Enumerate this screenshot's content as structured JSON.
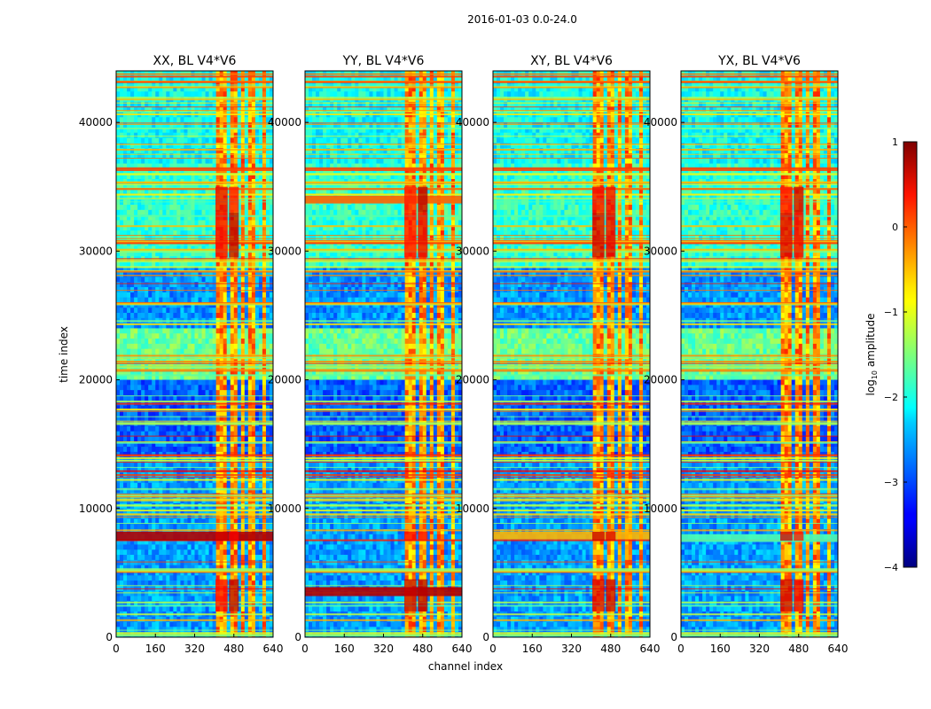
{
  "figure": {
    "suptitle": "2016-01-03 0.0-24.0"
  },
  "chart_data": {
    "type": "heatmap",
    "xlabel": "channel index",
    "ylabel": "time index",
    "xlim": [
      0,
      640
    ],
    "ylim": [
      0,
      44000
    ],
    "xticks": [
      0,
      160,
      320,
      480,
      640
    ],
    "yticks": [
      0,
      10000,
      20000,
      30000,
      40000
    ],
    "panels": [
      {
        "title": "XX, BL V4*V6",
        "strong_bands": [
          [
            7500,
            8200,
            0.95
          ]
        ]
      },
      {
        "title": "YY, BL V4*V6",
        "strong_bands": [
          [
            3200,
            3900,
            0.95
          ],
          [
            33700,
            34300,
            0.78
          ]
        ]
      },
      {
        "title": "XY, BL V4*V6",
        "strong_bands": [
          [
            7600,
            8200,
            0.7
          ]
        ]
      },
      {
        "title": "YX, BL V4*V6",
        "strong_bands": [
          [
            7400,
            8000,
            0.45
          ]
        ]
      }
    ],
    "rfi_channel_bands": [
      [
        405,
        455
      ],
      [
        460,
        500
      ],
      [
        505,
        520
      ],
      [
        535,
        560
      ],
      [
        575,
        585
      ],
      [
        600,
        610
      ]
    ],
    "quiet_time_ranges": [
      [
        0,
        14000
      ],
      [
        20000,
        24000
      ],
      [
        24000,
        29000
      ],
      [
        29500,
        37000
      ],
      [
        37000,
        44000
      ]
    ],
    "colorbar": {
      "label": "log10 amplitude",
      "range": [
        -4,
        1
      ],
      "ticks": [
        -4,
        -3,
        -2,
        -1,
        0,
        1
      ],
      "colormap": "jet"
    }
  },
  "colorbar_tick_labels": [
    "−4",
    "−3",
    "−2",
    "−1",
    "0",
    "1"
  ]
}
